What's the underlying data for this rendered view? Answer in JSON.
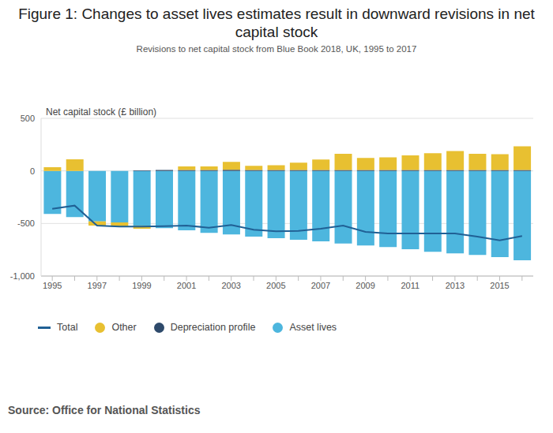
{
  "chart_data": {
    "type": "bar",
    "title": "Figure 1: Changes to asset lives estimates result in downward revisions in net capital stock",
    "subtitle": "Revisions to net capital stock from Blue Book 2018, UK, 1995 to 2017",
    "y_label": "Net capital stock (£ billion)",
    "source": "Source: Office for National Statistics",
    "categories": [
      "1995",
      null,
      "1997",
      null,
      "1999",
      null,
      "2001",
      null,
      "2003",
      null,
      "2005",
      null,
      "2007",
      null,
      "2009",
      null,
      "2011",
      null,
      "2013",
      null,
      "2015",
      null
    ],
    "series": [
      {
        "name": "Total",
        "type": "line",
        "color": "#206095",
        "values": [
          -360,
          -330,
          -520,
          -530,
          -530,
          -525,
          -520,
          -540,
          -515,
          -560,
          -575,
          -570,
          -550,
          -520,
          -580,
          -595,
          -595,
          -595,
          -595,
          -625,
          -660,
          -620
        ]
      },
      {
        "name": "Other",
        "type": "bar",
        "color": "#e8c031",
        "values": [
          35,
          110,
          -40,
          -40,
          -30,
          0,
          35,
          35,
          75,
          40,
          45,
          70,
          100,
          155,
          115,
          120,
          140,
          160,
          180,
          155,
          150,
          225
        ]
      },
      {
        "name": "Depreciation profile",
        "type": "bar",
        "color": "#2e4a6b",
        "values": [
          0,
          0,
          0,
          0,
          5,
          8,
          8,
          8,
          10,
          8,
          8,
          8,
          8,
          8,
          8,
          8,
          8,
          8,
          8,
          8,
          8,
          8
        ]
      },
      {
        "name": "Asset lives",
        "type": "bar",
        "color": "#4db6de",
        "values": [
          -410,
          -440,
          -480,
          -490,
          -520,
          -545,
          -565,
          -590,
          -605,
          -625,
          -640,
          -655,
          -670,
          -690,
          -710,
          -725,
          -745,
          -770,
          -785,
          -800,
          -820,
          -850
        ]
      }
    ],
    "ylim": [
      -1000,
      500
    ],
    "yticks": [
      {
        "value": -1000,
        "label": "-1,000"
      },
      -500,
      0,
      500
    ],
    "stacked": true,
    "grid": true,
    "legend": "bottom"
  }
}
